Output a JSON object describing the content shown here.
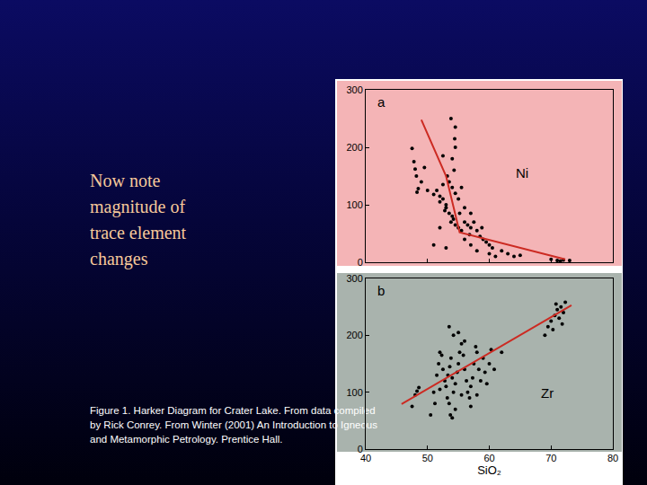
{
  "slide": {
    "text_lines": [
      "Now note",
      "magnitude of",
      "trace element",
      "changes"
    ],
    "caption_lines": [
      "Figure 1. Harker Diagram for Crater Lake. From data compiled",
      "by Rick Conrey. From Winter (2001) An Introduction to Igneous",
      "and Metamorphic Petrology. Prentice Hall."
    ]
  },
  "chart_data": [
    {
      "type": "scatter",
      "panel_label": "a",
      "element_label": "Ni",
      "xlim": [
        40,
        80
      ],
      "xticks": [
        40,
        50,
        60,
        70,
        80
      ],
      "ylim": [
        0,
        300
      ],
      "yticks": [
        0,
        100,
        200,
        300
      ],
      "grid": false,
      "tick_labels": "y",
      "series": [
        {
          "type": "scatter",
          "marker": "circle",
          "color": "#000000",
          "x": [
            47.5,
            47.8,
            48,
            48.2,
            48.5,
            48.3,
            49.5,
            49,
            50,
            51,
            51.5,
            52,
            52,
            52.5,
            53,
            53,
            52.8,
            53.5,
            54,
            54.2,
            53.8,
            54.5,
            55,
            55.5,
            56,
            56.5,
            57,
            57.5,
            58,
            58.5,
            59,
            59.5,
            60,
            60.5,
            53.5,
            54,
            54.5,
            55,
            54.3,
            54,
            54.5,
            54.4,
            54.5,
            53.8,
            52.5,
            55.5,
            56,
            57,
            56,
            57,
            58,
            62,
            63,
            64,
            65,
            53,
            51,
            52,
            70,
            71,
            72,
            71.5,
            73,
            52.5,
            53.2,
            55.2,
            56.8,
            58.8,
            60,
            61
          ],
          "values": [
            198,
            175,
            162,
            150,
            128,
            122,
            165,
            140,
            125,
            118,
            125,
            115,
            105,
            110,
            100,
            95,
            90,
            85,
            80,
            75,
            70,
            65,
            60,
            55,
            70,
            65,
            60,
            70,
            55,
            45,
            40,
            35,
            30,
            25,
            140,
            130,
            120,
            110,
            160,
            180,
            200,
            215,
            235,
            250,
            185,
            130,
            95,
            85,
            40,
            30,
            20,
            20,
            15,
            10,
            12,
            25,
            30,
            60,
            5,
            3,
            4,
            2,
            3,
            135,
            150,
            85,
            48,
            60,
            15,
            10
          ]
        },
        {
          "type": "line",
          "color": "#cc2a22",
          "x": [
            49,
            53,
            55.2,
            72.3
          ],
          "values": [
            248,
            150,
            52,
            5
          ]
        }
      ]
    },
    {
      "type": "scatter",
      "panel_label": "b",
      "element_label": "Zr",
      "x_label": "SiO₂",
      "xlim": [
        40,
        80
      ],
      "xticks": [
        40,
        50,
        60,
        70,
        80
      ],
      "ylim": [
        0,
        300
      ],
      "yticks": [
        0,
        100,
        200,
        300
      ],
      "grid": false,
      "series": [
        {
          "type": "scatter",
          "marker": "circle",
          "color": "#000000",
          "x": [
            47.5,
            48,
            48.3,
            48.6,
            50.5,
            51,
            51.5,
            51.8,
            52,
            52.3,
            52.5,
            52.8,
            53,
            53.2,
            53.5,
            53.7,
            54,
            53.3,
            53.6,
            53.8,
            54,
            54.2,
            54.5,
            54.8,
            55,
            55.2,
            55.5,
            55.8,
            56,
            56.3,
            56.5,
            56.8,
            57,
            57.3,
            57.5,
            57.8,
            58,
            58.3,
            58.6,
            59,
            59.3,
            59.6,
            60,
            60.3,
            53.5,
            54.2,
            55,
            56,
            52,
            51.2,
            55.5,
            57,
            58,
            54.5,
            69,
            69.5,
            70,
            70.3,
            70.6,
            71,
            71.3,
            71.6,
            72,
            72.3,
            71.8,
            70.8,
            62,
            60.8
          ],
          "values": [
            75,
            95,
            102,
            108,
            60,
            100,
            130,
            150,
            170,
            165,
            140,
            120,
            110,
            90,
            80,
            60,
            55,
            130,
            145,
            160,
            125,
            100,
            115,
            135,
            150,
            170,
            185,
            165,
            140,
            120,
            100,
            90,
            110,
            125,
            150,
            180,
            170,
            140,
            120,
            160,
            135,
            115,
            150,
            175,
            215,
            200,
            205,
            190,
            105,
            80,
            95,
            75,
            95,
            70,
            200,
            215,
            225,
            210,
            235,
            245,
            230,
            250,
            240,
            258,
            220,
            255,
            170,
            140
          ]
        },
        {
          "type": "line",
          "color": "#cc2a22",
          "x": [
            45.8,
            73.3
          ],
          "values": [
            79,
            253
          ]
        }
      ]
    }
  ]
}
